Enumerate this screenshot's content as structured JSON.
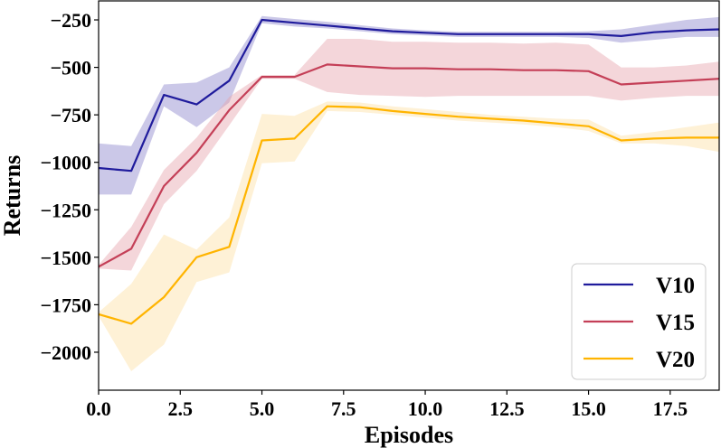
{
  "chart_data": {
    "type": "line",
    "title": "",
    "xlabel": "Episodes",
    "ylabel": "Returns",
    "xlim": [
      0,
      19
    ],
    "ylim": [
      -2200,
      -150
    ],
    "xticks": [
      0.0,
      2.5,
      5.0,
      7.5,
      10.0,
      12.5,
      15.0,
      17.5
    ],
    "xtick_labels": [
      "0.0",
      "2.5",
      "5.0",
      "7.5",
      "10.0",
      "12.5",
      "15.0",
      "17.5"
    ],
    "yticks": [
      -250,
      -500,
      -750,
      -1000,
      -1250,
      -1500,
      -1750,
      -2000
    ],
    "ytick_labels": [
      "−250",
      "−500",
      "−750",
      "−1000",
      "−1250",
      "−1500",
      "−1750",
      "−2000"
    ],
    "grid": false,
    "legend_position": "bottom-right",
    "x": [
      0,
      1,
      2,
      3,
      4,
      5,
      6,
      7,
      8,
      9,
      10,
      11,
      12,
      13,
      14,
      15,
      16,
      17,
      18,
      19
    ],
    "series": [
      {
        "name": "V10",
        "color": "#1f1b9c",
        "band_color": "#8c86cc",
        "values": [
          -1030,
          -1045,
          -645,
          -695,
          -570,
          -250,
          -265,
          -280,
          -295,
          -310,
          -318,
          -325,
          -325,
          -325,
          -325,
          -325,
          -335,
          -315,
          -305,
          -300
        ],
        "lower": [
          -1170,
          -1170,
          -705,
          -815,
          -685,
          -268,
          -285,
          -295,
          -310,
          -325,
          -332,
          -340,
          -340,
          -340,
          -340,
          -345,
          -370,
          -355,
          -340,
          -340
        ],
        "upper": [
          -900,
          -915,
          -590,
          -580,
          -500,
          -230,
          -245,
          -260,
          -278,
          -295,
          -305,
          -312,
          -312,
          -312,
          -312,
          -310,
          -300,
          -275,
          -250,
          -235
        ]
      },
      {
        "name": "V15",
        "color": "#c43f57",
        "band_color": "#e7a4ae",
        "values": [
          -1550,
          -1455,
          -1125,
          -950,
          -725,
          -550,
          -550,
          -485,
          -495,
          -505,
          -505,
          -510,
          -510,
          -515,
          -515,
          -520,
          -590,
          -580,
          -570,
          -560
        ],
        "lower": [
          -1560,
          -1570,
          -1220,
          -1045,
          -805,
          -560,
          -560,
          -630,
          -645,
          -650,
          -655,
          -650,
          -650,
          -650,
          -650,
          -650,
          -675,
          -660,
          -650,
          -650
        ],
        "upper": [
          -1540,
          -1340,
          -1040,
          -870,
          -655,
          -540,
          -540,
          -350,
          -350,
          -365,
          -365,
          -370,
          -370,
          -375,
          -370,
          -380,
          -500,
          -500,
          -490,
          -470
        ]
      },
      {
        "name": "V20",
        "color": "#ffb400",
        "band_color": "#fde0a3",
        "values": [
          -1800,
          -1850,
          -1710,
          -1500,
          -1445,
          -885,
          -875,
          -705,
          -710,
          -730,
          -745,
          -760,
          -770,
          -780,
          -795,
          -810,
          -885,
          -875,
          -870,
          -870
        ],
        "lower": [
          -1810,
          -2100,
          -1960,
          -1630,
          -1580,
          -1005,
          -995,
          -730,
          -735,
          -750,
          -765,
          -780,
          -790,
          -800,
          -815,
          -835,
          -900,
          -900,
          -915,
          -945
        ],
        "upper": [
          -1790,
          -1640,
          -1380,
          -1460,
          -1290,
          -745,
          -755,
          -680,
          -685,
          -705,
          -720,
          -735,
          -750,
          -760,
          -770,
          -775,
          -860,
          -840,
          -815,
          -790
        ]
      }
    ]
  }
}
